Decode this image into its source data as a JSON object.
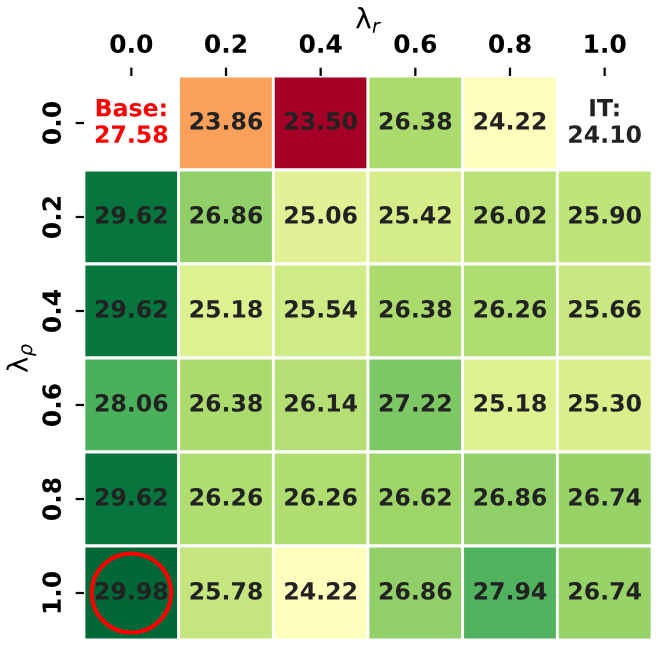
{
  "chart_data": {
    "type": "heatmap",
    "xlabel": "λ$_{r}$",
    "ylabel": "λ$_{ρ}$",
    "categories": [
      "0.0",
      "0.2",
      "0.4",
      "0.6",
      "0.8",
      "1.0"
    ],
    "y_categories": [
      "0.0",
      "0.2",
      "0.4",
      "0.6",
      "0.8",
      "1.0"
    ],
    "cells": [
      [
        null,
        23.86,
        23.5,
        26.38,
        24.22,
        null
      ],
      [
        29.62,
        26.86,
        25.06,
        25.42,
        26.02,
        25.9
      ],
      [
        29.62,
        25.18,
        25.54,
        26.38,
        26.26,
        25.66
      ],
      [
        28.06,
        26.38,
        26.14,
        27.22,
        25.18,
        25.3
      ],
      [
        29.62,
        26.26,
        26.26,
        26.62,
        26.86,
        26.74
      ],
      [
        29.98,
        25.78,
        24.22,
        26.86,
        27.94,
        26.74
      ]
    ],
    "cell_labels": [
      [
        "Base:\n27.58",
        "23.86",
        "23.50",
        "26.38",
        "24.22",
        "IT:\n24.10"
      ],
      [
        "29.62",
        "26.86",
        "25.06",
        "25.42",
        "26.02",
        "25.90"
      ],
      [
        "29.62",
        "25.18",
        "25.54",
        "26.38",
        "26.26",
        "25.66"
      ],
      [
        "28.06",
        "26.38",
        "26.14",
        "27.22",
        "25.18",
        "25.30"
      ],
      [
        "29.62",
        "26.26",
        "26.26",
        "26.62",
        "26.86",
        "26.74"
      ],
      [
        "29.98",
        "25.78",
        "24.22",
        "26.86",
        "27.94",
        "26.74"
      ]
    ]
  }
}
